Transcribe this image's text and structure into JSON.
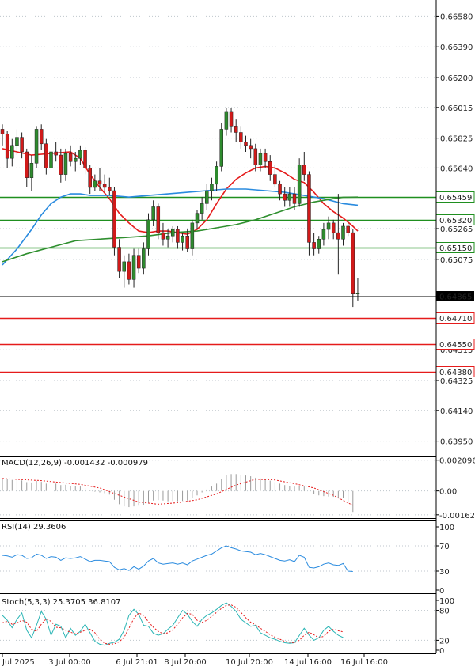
{
  "chart_data": [
    {
      "type": "candlestick",
      "title": "",
      "x_ticks": [
        "Jul 2025",
        "3 Jul 00:00",
        "6 Jul 21:01",
        "8 Jul 20:00",
        "10 Jul 20:00",
        "14 Jul 16:00",
        "16 Jul 16:00"
      ],
      "y_ticks": [
        "0.66580",
        "0.66390",
        "0.66200",
        "0.66015",
        "0.65825",
        "0.65640",
        "0.65265",
        "0.65075",
        "0.64515",
        "0.64325",
        "0.64140",
        "0.63950"
      ],
      "ylim": [
        0.6386,
        0.6668
      ],
      "bull_color": "#2e8b2e",
      "bear_color": "#d11a1a",
      "candles": [
        [
          0.6588,
          0.6591,
          0.6578,
          0.6585
        ],
        [
          0.6585,
          0.6587,
          0.6564,
          0.657
        ],
        [
          0.657,
          0.6582,
          0.6565,
          0.6578
        ],
        [
          0.6578,
          0.6588,
          0.6572,
          0.6583
        ],
        [
          0.6583,
          0.6586,
          0.657,
          0.6574
        ],
        [
          0.6574,
          0.6576,
          0.6552,
          0.6558
        ],
        [
          0.6558,
          0.6572,
          0.655,
          0.6567
        ],
        [
          0.6567,
          0.659,
          0.6564,
          0.6588
        ],
        [
          0.6588,
          0.6591,
          0.6575,
          0.6579
        ],
        [
          0.6579,
          0.6582,
          0.656,
          0.6564
        ],
        [
          0.6564,
          0.6578,
          0.656,
          0.6574
        ],
        [
          0.6574,
          0.658,
          0.6568,
          0.6572
        ],
        [
          0.6572,
          0.6576,
          0.6555,
          0.656
        ],
        [
          0.656,
          0.6576,
          0.6556,
          0.6573
        ],
        [
          0.6573,
          0.6578,
          0.6565,
          0.6568
        ],
        [
          0.6568,
          0.6574,
          0.6562,
          0.657
        ],
        [
          0.657,
          0.6578,
          0.6566,
          0.6575
        ],
        [
          0.6575,
          0.6577,
          0.656,
          0.6564
        ],
        [
          0.6564,
          0.6566,
          0.6548,
          0.6552
        ],
        [
          0.6552,
          0.656,
          0.655,
          0.6556
        ],
        [
          0.6556,
          0.6564,
          0.655,
          0.6554
        ],
        [
          0.6554,
          0.656,
          0.655,
          0.6552
        ],
        [
          0.6552,
          0.6558,
          0.6547,
          0.655
        ],
        [
          0.655,
          0.6552,
          0.651,
          0.6515
        ],
        [
          0.6515,
          0.652,
          0.6496,
          0.65
        ],
        [
          0.65,
          0.651,
          0.649,
          0.6506
        ],
        [
          0.6506,
          0.6511,
          0.6492,
          0.6495
        ],
        [
          0.6495,
          0.6514,
          0.649,
          0.651
        ],
        [
          0.651,
          0.6514,
          0.6499,
          0.6502
        ],
        [
          0.6502,
          0.6518,
          0.6498,
          0.6514
        ],
        [
          0.6514,
          0.6536,
          0.651,
          0.6532
        ],
        [
          0.6532,
          0.6544,
          0.6528,
          0.654
        ],
        [
          0.654,
          0.6542,
          0.652,
          0.6524
        ],
        [
          0.6524,
          0.653,
          0.6516,
          0.652
        ],
        [
          0.652,
          0.6526,
          0.6515,
          0.6522
        ],
        [
          0.6522,
          0.6528,
          0.6518,
          0.6526
        ],
        [
          0.6526,
          0.6528,
          0.6514,
          0.6518
        ],
        [
          0.6518,
          0.6524,
          0.6513,
          0.6522
        ],
        [
          0.6522,
          0.6526,
          0.6512,
          0.6514
        ],
        [
          0.6514,
          0.6532,
          0.651,
          0.653
        ],
        [
          0.653,
          0.6538,
          0.6526,
          0.6536
        ],
        [
          0.6536,
          0.6546,
          0.6532,
          0.6542
        ],
        [
          0.6542,
          0.6554,
          0.6538,
          0.655
        ],
        [
          0.655,
          0.6558,
          0.6544,
          0.6554
        ],
        [
          0.6554,
          0.6568,
          0.655,
          0.6565
        ],
        [
          0.6565,
          0.6592,
          0.6562,
          0.6588
        ],
        [
          0.6588,
          0.6601,
          0.6584,
          0.6599
        ],
        [
          0.6599,
          0.6601,
          0.6586,
          0.659
        ],
        [
          0.659,
          0.6594,
          0.658,
          0.6586
        ],
        [
          0.6586,
          0.659,
          0.6576,
          0.658
        ],
        [
          0.658,
          0.6584,
          0.6574,
          0.6578
        ],
        [
          0.6578,
          0.6582,
          0.657,
          0.6576
        ],
        [
          0.6576,
          0.6579,
          0.6562,
          0.6566
        ],
        [
          0.6566,
          0.6576,
          0.6562,
          0.6573
        ],
        [
          0.6573,
          0.6576,
          0.6564,
          0.6568
        ],
        [
          0.6568,
          0.6572,
          0.6556,
          0.656
        ],
        [
          0.656,
          0.6566,
          0.6552,
          0.6554
        ],
        [
          0.6554,
          0.6556,
          0.6544,
          0.6548
        ],
        [
          0.6548,
          0.6552,
          0.654,
          0.6544
        ],
        [
          0.6544,
          0.6552,
          0.654,
          0.6548
        ],
        [
          0.6548,
          0.6552,
          0.6538,
          0.6542
        ],
        [
          0.6542,
          0.657,
          0.654,
          0.6566
        ],
        [
          0.6566,
          0.6574,
          0.6556,
          0.656
        ],
        [
          0.656,
          0.6562,
          0.651,
          0.6518
        ],
        [
          0.6518,
          0.6524,
          0.651,
          0.6514
        ],
        [
          0.6514,
          0.6522,
          0.6511,
          0.652
        ],
        [
          0.652,
          0.653,
          0.6516,
          0.6526
        ],
        [
          0.6526,
          0.6534,
          0.652,
          0.653
        ],
        [
          0.653,
          0.6532,
          0.652,
          0.6524
        ],
        [
          0.6524,
          0.6548,
          0.6498,
          0.652
        ],
        [
          0.652,
          0.653,
          0.6516,
          0.6528
        ],
        [
          0.6528,
          0.653,
          0.6522,
          0.6524
        ],
        [
          0.6524,
          0.6526,
          0.6478,
          0.6486
        ],
        [
          0.6486,
          0.6496,
          0.6482,
          0.64865
        ]
      ],
      "moving_averages": [
        {
          "color": "#e51b1b",
          "points": [
            [
              0,
              0.6576
            ],
            [
              6,
              0.6572
            ],
            [
              10,
              0.6573
            ],
            [
              14,
              0.6574
            ],
            [
              16,
              0.657
            ],
            [
              18,
              0.656
            ],
            [
              20,
              0.6552
            ],
            [
              22,
              0.6545
            ],
            [
              24,
              0.6536
            ],
            [
              26,
              0.653
            ],
            [
              28,
              0.6525
            ],
            [
              30,
              0.6524
            ],
            [
              32,
              0.6525
            ],
            [
              34,
              0.6525
            ],
            [
              36,
              0.6524
            ],
            [
              38,
              0.6523
            ],
            [
              40,
              0.6526
            ],
            [
              42,
              0.6532
            ],
            [
              44,
              0.6542
            ],
            [
              46,
              0.6551
            ],
            [
              48,
              0.6557
            ],
            [
              50,
              0.6561
            ],
            [
              52,
              0.6564
            ],
            [
              54,
              0.6565
            ],
            [
              56,
              0.6564
            ],
            [
              58,
              0.6561
            ],
            [
              60,
              0.6557
            ],
            [
              62,
              0.6555
            ],
            [
              64,
              0.6549
            ],
            [
              66,
              0.6542
            ],
            [
              68,
              0.6537
            ],
            [
              70,
              0.6533
            ],
            [
              72,
              0.6528
            ],
            [
              73,
              0.6525
            ]
          ]
        },
        {
          "color": "#2a8bdf",
          "points": [
            [
              0,
              0.6504
            ],
            [
              3,
              0.6514
            ],
            [
              6,
              0.6526
            ],
            [
              8,
              0.6535
            ],
            [
              10,
              0.6542
            ],
            [
              12,
              0.6546
            ],
            [
              14,
              0.6548
            ],
            [
              16,
              0.6548
            ],
            [
              18,
              0.6547
            ],
            [
              20,
              0.6547
            ],
            [
              22,
              0.6547
            ],
            [
              26,
              0.6546
            ],
            [
              30,
              0.6547
            ],
            [
              34,
              0.6548
            ],
            [
              38,
              0.6549
            ],
            [
              42,
              0.655
            ],
            [
              46,
              0.6551
            ],
            [
              50,
              0.6551
            ],
            [
              54,
              0.655
            ],
            [
              58,
              0.6549
            ],
            [
              62,
              0.6547
            ],
            [
              66,
              0.6545
            ],
            [
              70,
              0.6542
            ],
            [
              73,
              0.6541
            ]
          ]
        },
        {
          "color": "#2f8f2f",
          "points": [
            [
              0,
              0.6506
            ],
            [
              5,
              0.6511
            ],
            [
              10,
              0.6515
            ],
            [
              15,
              0.6519
            ],
            [
              20,
              0.652
            ],
            [
              25,
              0.6521
            ],
            [
              30,
              0.6522
            ],
            [
              35,
              0.6524
            ],
            [
              40,
              0.6525
            ],
            [
              44,
              0.6527
            ],
            [
              48,
              0.6529
            ],
            [
              52,
              0.6532
            ],
            [
              56,
              0.6536
            ],
            [
              60,
              0.654
            ],
            [
              64,
              0.6543
            ],
            [
              68,
              0.6545
            ],
            [
              70,
              0.65459
            ],
            [
              73,
              0.6546
            ]
          ]
        }
      ],
      "horizontal_levels": [
        {
          "value": 0.65459,
          "label": "0.65459",
          "color": "#1f8f1f"
        },
        {
          "value": 0.6532,
          "label": "0.65320",
          "color": "#1f8f1f"
        },
        {
          "value": 0.6515,
          "label": "0.65150",
          "color": "#1f8f1f"
        },
        {
          "value": 0.6471,
          "label": "0.64710",
          "color": "#e51b1b"
        },
        {
          "value": 0.6455,
          "label": "0.64550",
          "color": "#e51b1b"
        },
        {
          "value": 0.6438,
          "label": "0.64380",
          "color": "#e51b1b"
        }
      ],
      "current_price": {
        "value": 0.64865,
        "label": "0.64865"
      }
    },
    {
      "type": "bar",
      "title": "MACD(12,26,9) -0.001432 -0.000979",
      "y_ticks": [
        "0.002096",
        "0.00",
        "-0.001625"
      ],
      "ylim": [
        -0.00185,
        0.00235
      ],
      "bar_color": "#9a9a9a",
      "signal_color": "#e51b1b",
      "values": [
        0.0008,
        0.00082,
        0.00075,
        0.00078,
        0.00072,
        0.0006,
        0.00058,
        0.00068,
        0.00062,
        0.0005,
        0.00052,
        0.0005,
        0.0004,
        0.00042,
        0.00035,
        0.00034,
        0.0003,
        0.0002,
        5e-05,
        -5e-05,
        -0.0001,
        -0.00015,
        -0.00025,
        -0.0006,
        -0.0009,
        -0.00105,
        -0.0011,
        -0.00105,
        -0.001,
        -0.00098,
        -0.0008,
        -0.00065,
        -0.00062,
        -0.00065,
        -0.0007,
        -0.00068,
        -0.0007,
        -0.00068,
        -0.00065,
        -0.0005,
        -0.0003,
        -0.0001,
        0.0001,
        0.0003,
        0.0005,
        0.0008,
        0.0011,
        0.00115,
        0.00115,
        0.0011,
        0.00105,
        0.001,
        0.0009,
        0.00085,
        0.0008,
        0.0007,
        0.0006,
        0.0005,
        0.0004,
        0.00035,
        0.0003,
        0.00035,
        0.0003,
        0.0,
        -0.0002,
        -0.0003,
        -0.00035,
        -0.00038,
        -0.0004,
        -0.00045,
        -0.0005,
        -0.0008,
        -0.00143
      ],
      "signal": [
        [
          0,
          0.00085
        ],
        [
          8,
          0.0007
        ],
        [
          16,
          0.00045
        ],
        [
          20,
          0.0002
        ],
        [
          24,
          -0.0003
        ],
        [
          28,
          -0.00075
        ],
        [
          32,
          -0.0009
        ],
        [
          36,
          -0.0008
        ],
        [
          40,
          -0.0006
        ],
        [
          44,
          -0.0002
        ],
        [
          48,
          0.0004
        ],
        [
          52,
          0.0008
        ],
        [
          56,
          0.00075
        ],
        [
          60,
          0.0005
        ],
        [
          64,
          0.0002
        ],
        [
          68,
          -0.0003
        ],
        [
          72,
          -0.00098
        ]
      ]
    },
    {
      "type": "line",
      "title": "RSI(14) 29.3606",
      "y_ticks": [
        "100",
        "70",
        "30",
        "0"
      ],
      "ylim": [
        0,
        100
      ],
      "color": "#2a8bdf",
      "values": [
        55,
        54,
        52,
        56,
        55,
        50,
        51,
        57,
        55,
        50,
        53,
        52,
        47,
        51,
        50,
        51,
        53,
        49,
        45,
        47,
        47,
        46,
        45,
        36,
        32,
        34,
        31,
        37,
        33,
        38,
        46,
        50,
        43,
        41,
        42,
        43,
        41,
        43,
        40,
        46,
        49,
        52,
        55,
        57,
        62,
        67,
        70,
        67,
        65,
        62,
        61,
        60,
        56,
        58,
        56,
        53,
        50,
        47,
        46,
        48,
        45,
        55,
        52,
        36,
        35,
        37,
        41,
        43,
        40,
        39,
        42,
        30,
        29.36
      ]
    },
    {
      "type": "line",
      "title": "Stoch(5,3,3) 25.3705 36.8107",
      "y_ticks": [
        "100",
        "80",
        "20",
        "0"
      ],
      "ylim": [
        0,
        100
      ],
      "k_color": "#2bb5b5",
      "d_color": "#e51b1b",
      "k_values": [
        70,
        60,
        45,
        62,
        75,
        40,
        25,
        50,
        78,
        62,
        30,
        52,
        48,
        25,
        44,
        30,
        38,
        52,
        35,
        18,
        12,
        10,
        14,
        16,
        22,
        40,
        70,
        82,
        72,
        50,
        48,
        34,
        30,
        33,
        42,
        50,
        65,
        80,
        72,
        58,
        48,
        62,
        70,
        75,
        82,
        90,
        95,
        88,
        78,
        62,
        55,
        48,
        50,
        35,
        30,
        25,
        22,
        18,
        15,
        14,
        15,
        30,
        44,
        30,
        20,
        25,
        40,
        48,
        38,
        30,
        25.37
      ],
      "d_values": [
        55,
        58,
        52,
        55,
        60,
        56,
        42,
        38,
        52,
        63,
        58,
        46,
        45,
        40,
        36,
        33,
        36,
        40,
        42,
        35,
        22,
        14,
        12,
        13,
        17,
        26,
        44,
        64,
        75,
        70,
        57,
        46,
        38,
        33,
        35,
        41,
        52,
        65,
        74,
        72,
        60,
        56,
        60,
        68,
        76,
        84,
        90,
        91,
        86,
        76,
        65,
        56,
        51,
        44,
        38,
        31,
        26,
        22,
        18,
        16,
        15,
        20,
        30,
        36,
        31,
        25,
        28,
        38,
        42,
        39,
        36.81
      ]
    }
  ]
}
